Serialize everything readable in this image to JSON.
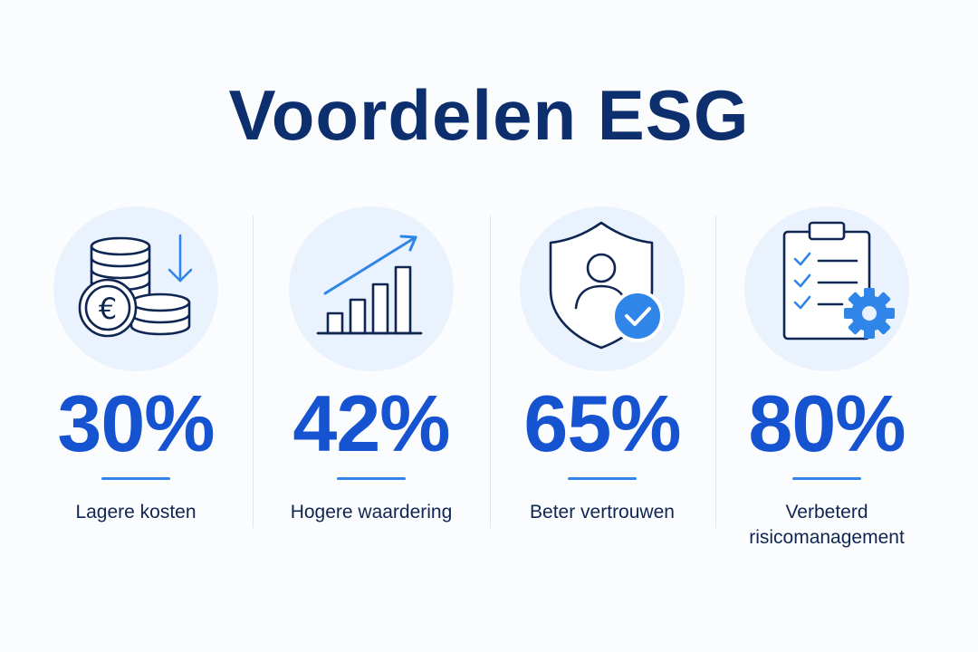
{
  "title": "Voordelen ESG",
  "colors": {
    "title": "#0d2f6e",
    "stat": "#1553d1",
    "accent": "#2f86e8",
    "icon_bg": "#eaf2fd"
  },
  "cards": [
    {
      "icon": "coins-euro-down-icon",
      "value": "30%",
      "label": "Lagere kosten"
    },
    {
      "icon": "growth-chart-icon",
      "value": "42%",
      "label": "Hogere waardering"
    },
    {
      "icon": "shield-user-check-icon",
      "value": "65%",
      "label": "Beter vertrouwen"
    },
    {
      "icon": "clipboard-gear-icon",
      "value": "80%",
      "label": "Verbeterd risicomanagement"
    }
  ]
}
